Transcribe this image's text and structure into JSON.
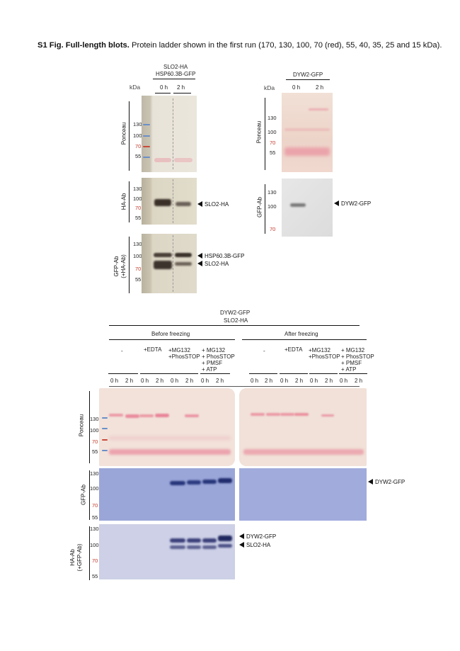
{
  "caption": {
    "title": "S1 Fig. Full-length blots.",
    "text": "Protein ladder shown in the first run (170, 130, 100, 70 (red), 55, 40, 35, 25 and 15 kDa)."
  },
  "panel_a": {
    "header_line1": "SLO2-HA",
    "header_line2": "HSP60.3B-GFP",
    "kda": "kDa",
    "times": [
      "0 h",
      "2 h"
    ],
    "ponceau_label": "Ponceau",
    "ponceau_marks": [
      "130",
      "100",
      "70",
      "55"
    ],
    "ha_label": "HA-Ab",
    "ha_marks": [
      "130",
      "100",
      "70",
      "55"
    ],
    "ha_target": "SLO2-HA",
    "gfp_label_1": "GFP-Ab",
    "gfp_label_2": "(+HA-Ab)",
    "gfp_marks": [
      "130",
      "100",
      "70",
      "55"
    ],
    "gfp_target_1": "HSP60.3B-GFP",
    "gfp_target_2": "SLO2-HA"
  },
  "panel_b": {
    "header": "DYW2-GFP",
    "kda": "kDa",
    "times": [
      "0 h",
      "2 h"
    ],
    "ponceau_label": "Ponceau",
    "ponceau_marks": [
      "130",
      "100",
      "70",
      "55"
    ],
    "gfp_label": "GFP-Ab",
    "gfp_marks": [
      "130",
      "100",
      "70"
    ],
    "gfp_target": "DYW2-GFP"
  },
  "panel_c": {
    "header_line1": "DYW2-GFP",
    "header_line2": "SLO2-HA",
    "group_before": "Before freezing",
    "group_after": "After freezing",
    "conditions": [
      "-",
      "+EDTA",
      "+MG132\n+PhosSTOP",
      "+ MG132\n+ PhosSTOP\n+ PMSF\n+ ATP"
    ],
    "times": [
      "0 h",
      "2 h"
    ],
    "ponceau_label": "Ponceau",
    "ponceau_marks": [
      "130",
      "100",
      "70",
      "55"
    ],
    "gfp_label": "GFP-Ab",
    "gfp_marks": [
      "130",
      "100",
      "70",
      "55"
    ],
    "gfp_target": "DYW2-GFP",
    "ha_label_1": "HA-Ab",
    "ha_label_2": "(+GFP-Ab)",
    "ha_marks": [
      "130",
      "100",
      "70",
      "55"
    ],
    "ha_target_1": "DYW2-GFP",
    "ha_target_2": "SLO2-HA"
  },
  "colors": {
    "ponceau_bg": "#f2e2da",
    "ponceau_band": "#e87a90",
    "blue_bg": "#9aa6d8",
    "blue_band": "#26357a",
    "ladder_blue": "#6a8fc7",
    "ladder_red": "#c94a3a",
    "marker_red": "#c0392b"
  }
}
